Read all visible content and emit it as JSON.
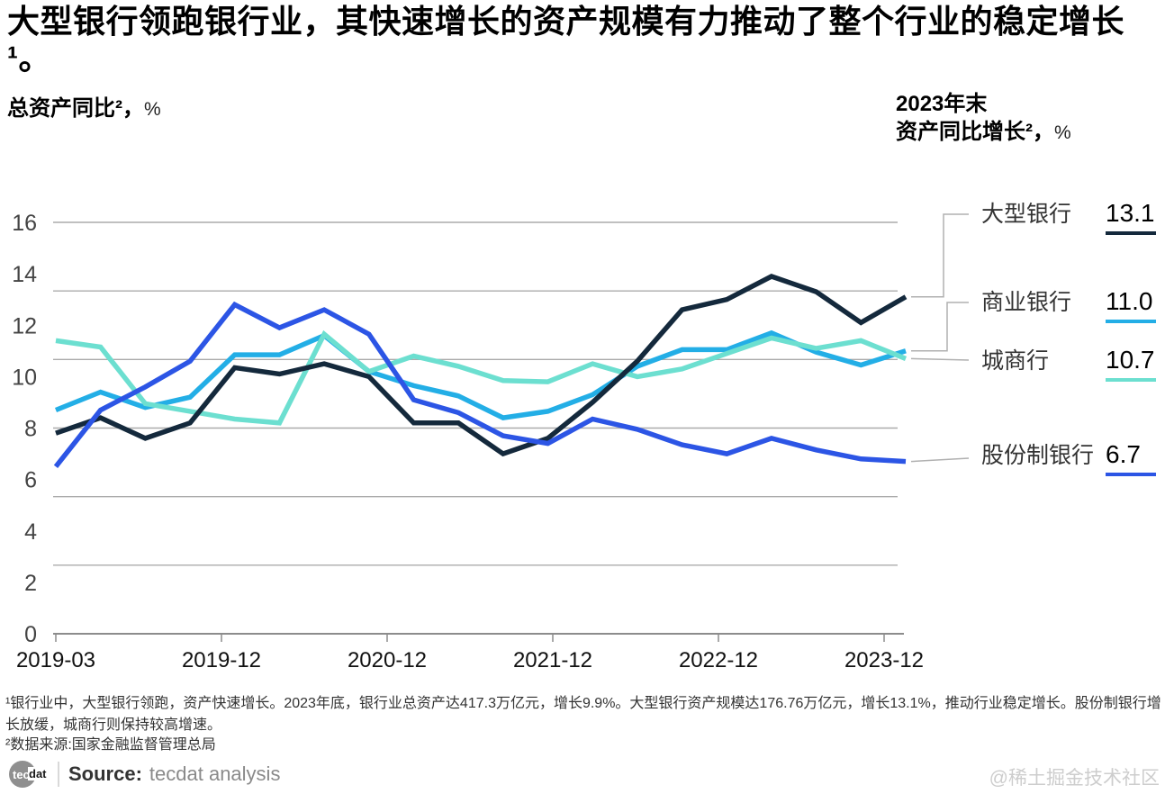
{
  "header": {
    "title": "大型银行领跑银行业，其快速增长的资产规模有力推动了整个行业的稳定增长¹。",
    "subtitle_main": "总资产同比²，",
    "subtitle_unit": "%",
    "right_line1": "2023年末",
    "right_line2_main": "资产同比增长²，",
    "right_line2_unit": "%"
  },
  "chart_data": {
    "type": "line",
    "x": [
      "2019-03",
      "2019-06",
      "2019-09",
      "2019-12",
      "2020-03",
      "2020-06",
      "2020-09",
      "2020-12",
      "2021-03",
      "2021-06",
      "2021-09",
      "2021-12",
      "2022-03",
      "2022-06",
      "2022-09",
      "2022-12",
      "2023-03",
      "2023-06",
      "2023-09",
      "2023-12"
    ],
    "x_tick_labels": [
      "2019-03",
      "2019-12",
      "2020-12",
      "2021-12",
      "2022-12",
      "2023-12"
    ],
    "ylabel": "总资产同比, %",
    "ylim": [
      0,
      16
    ],
    "y_ticks": [
      0,
      2,
      4,
      6,
      8,
      10,
      12,
      14,
      16
    ],
    "grid_divisions": 6,
    "grid_on": true,
    "legend_position": "right-callout",
    "series": [
      {
        "name": "大型银行",
        "color": "#14293c",
        "end_label": "13.1",
        "values": [
          7.8,
          8.4,
          7.6,
          8.2,
          10.35,
          10.1,
          10.5,
          10.0,
          8.2,
          8.2,
          7.0,
          7.6,
          9.0,
          10.6,
          12.6,
          13.0,
          13.9,
          13.3,
          12.1,
          13.1
        ]
      },
      {
        "name": "商业银行",
        "color": "#23aee6",
        "end_label": "11.0",
        "values": [
          8.7,
          9.4,
          8.8,
          9.2,
          10.85,
          10.85,
          11.6,
          10.2,
          9.65,
          9.25,
          8.4,
          8.65,
          9.3,
          10.4,
          11.05,
          11.05,
          11.7,
          10.95,
          10.45,
          11.0
        ]
      },
      {
        "name": "城商行",
        "color": "#6cdfd0",
        "end_label": "10.7",
        "values": [
          11.4,
          11.15,
          8.95,
          8.65,
          8.35,
          8.2,
          11.65,
          10.2,
          10.8,
          10.4,
          9.85,
          9.8,
          10.5,
          10.0,
          10.3,
          10.9,
          11.5,
          11.1,
          11.4,
          10.7
        ]
      },
      {
        "name": "股份制银行",
        "color": "#2c55e5",
        "end_label": "6.7",
        "values": [
          6.5,
          8.7,
          9.6,
          10.6,
          12.8,
          11.9,
          12.6,
          11.65,
          9.1,
          8.6,
          7.7,
          7.4,
          8.35,
          7.95,
          7.35,
          7.0,
          7.6,
          7.15,
          6.8,
          6.7
        ]
      }
    ]
  },
  "footnotes": {
    "note1": "¹银行业中，大型银行领跑，资产快速增长。2023年底，银行业总资产达417.3万亿元，增长9.9%。大型银行资产规模达176.76万亿元，增长13.1%，推动行业稳定增长。股份制银行增长放缓，城商行则保持较高增速。",
    "note2": "²数据来源:国家金融监督管理总局"
  },
  "source": {
    "logo_tec": "tec",
    "logo_dat": "dat",
    "label": "Source:",
    "value": "tecdat analysis"
  },
  "watermark": "@稀土掘金技术社区"
}
